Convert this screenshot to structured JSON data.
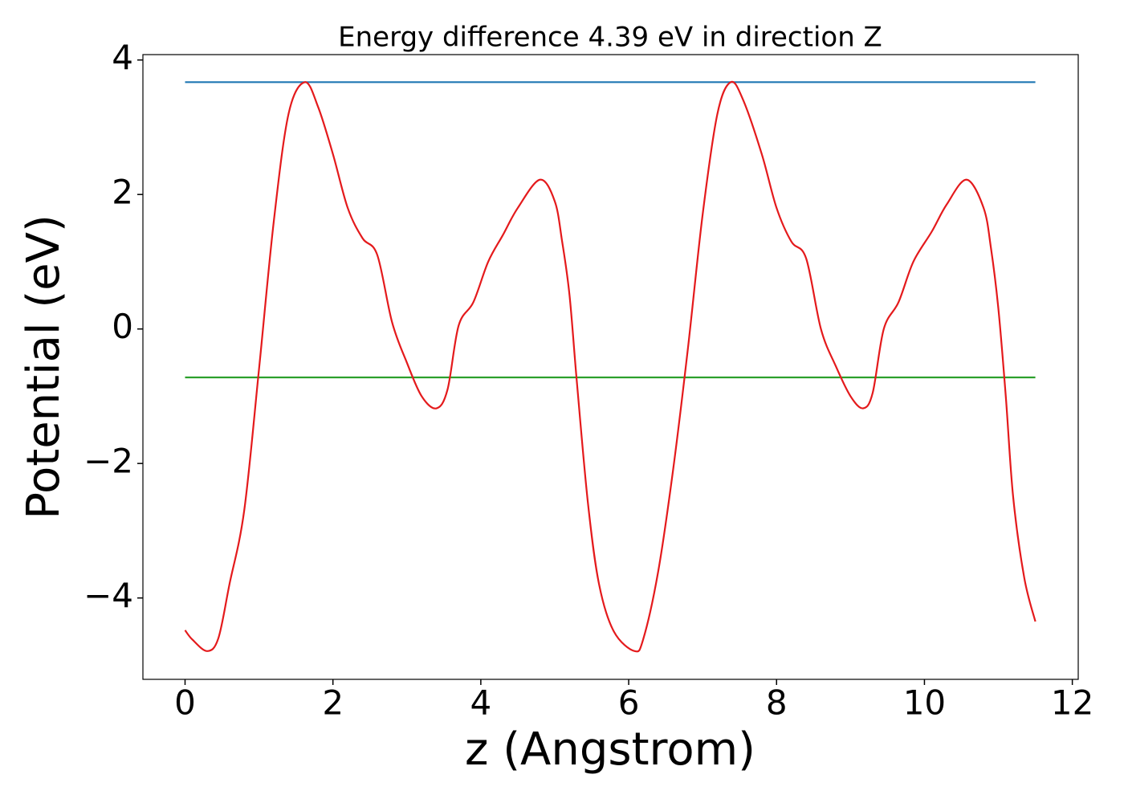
{
  "chart_data": {
    "type": "line",
    "title": "Energy difference 4.39 eV in direction Z",
    "xlabel": "z (Angstrom)",
    "ylabel": "Potential (eV)",
    "xlim": [
      -0.57,
      12.08
    ],
    "ylim": [
      -5.21,
      4.08
    ],
    "xticks": [
      0,
      2,
      4,
      6,
      8,
      10,
      12
    ],
    "yticks": [
      {
        "value": -4,
        "label": "−4"
      },
      {
        "value": -2,
        "label": "−2"
      },
      0,
      2,
      4
    ],
    "series": [
      {
        "color": "#1f77b4",
        "x": [
          0,
          11.5
        ],
        "values": [
          3.67,
          3.67
        ]
      },
      {
        "color": "#2ca02c",
        "x": [
          0,
          11.5
        ],
        "values": [
          -0.72,
          -0.72
        ]
      },
      {
        "color": "#e41a1c",
        "x": [
          0,
          0.1,
          0.3,
          0.45,
          0.6,
          0.8,
          1.0,
          1.2,
          1.4,
          1.62,
          1.8,
          2.0,
          2.2,
          2.4,
          2.6,
          2.8,
          3.0,
          3.2,
          3.4,
          3.55,
          3.7,
          3.9,
          4.1,
          4.3,
          4.5,
          4.8,
          5.0,
          5.1,
          5.2,
          5.3,
          5.45,
          5.6,
          5.8,
          6.08,
          6.2,
          6.4,
          6.6,
          6.8,
          7.0,
          7.2,
          7.38,
          7.55,
          7.8,
          8.0,
          8.2,
          8.4,
          8.6,
          8.8,
          9.0,
          9.17,
          9.3,
          9.45,
          9.65,
          9.85,
          10.1,
          10.3,
          10.57,
          10.8,
          10.9,
          11.0,
          11.1,
          11.2,
          11.35,
          11.5
        ],
        "values": [
          -4.48,
          -4.62,
          -4.79,
          -4.6,
          -3.8,
          -2.7,
          -0.6,
          1.6,
          3.2,
          3.67,
          3.3,
          2.6,
          1.8,
          1.35,
          1.1,
          0.1,
          -0.5,
          -1.0,
          -1.18,
          -0.9,
          0.05,
          0.4,
          1.0,
          1.4,
          1.8,
          2.22,
          1.9,
          1.3,
          0.5,
          -0.8,
          -2.6,
          -3.8,
          -4.5,
          -4.79,
          -4.6,
          -3.6,
          -2.1,
          -0.3,
          1.7,
          3.2,
          3.67,
          3.4,
          2.6,
          1.8,
          1.3,
          1.05,
          0.0,
          -0.55,
          -1.0,
          -1.18,
          -0.95,
          0.0,
          0.4,
          1.0,
          1.45,
          1.85,
          2.22,
          1.8,
          1.2,
          0.3,
          -1.0,
          -2.5,
          -3.7,
          -4.35
        ]
      }
    ]
  }
}
